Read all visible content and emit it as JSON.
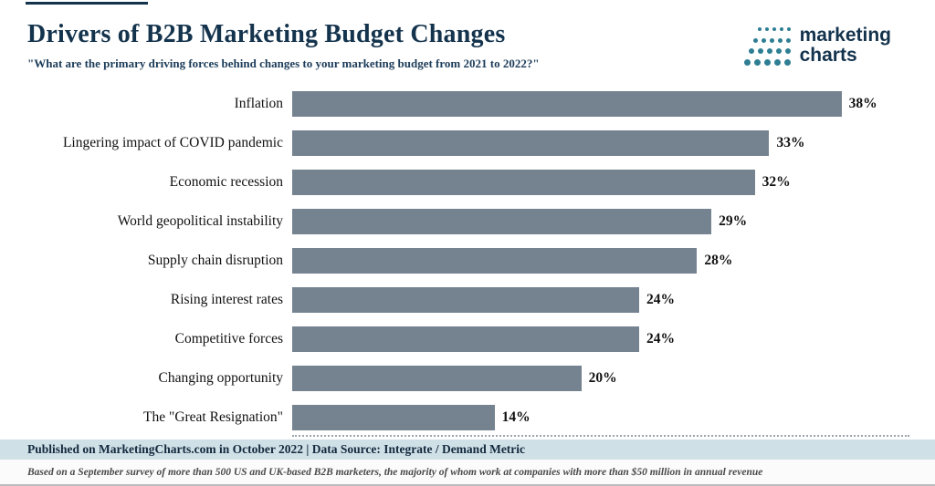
{
  "header": {
    "title": "Drivers of B2B Marketing Budget Changes",
    "subtitle": "\"What are the primary driving forces behind changes to your marketing budget from 2021 to 2022?\""
  },
  "logo": {
    "line1": "marketing",
    "line2": "charts",
    "dot_color": "#2e7e93",
    "text_color": "#14334d"
  },
  "chart_data": {
    "type": "bar",
    "orientation": "horizontal",
    "title": "Drivers of B2B Marketing Budget Changes",
    "categories": [
      "Inflation",
      "Lingering impact of COVID pandemic",
      "Economic recession",
      "World geopolitical instability",
      "Supply chain disruption",
      "Rising interest rates",
      "Competitive forces",
      "Changing opportunity",
      "The \"Great Resignation\""
    ],
    "values": [
      38,
      33,
      32,
      29,
      28,
      24,
      24,
      20,
      14
    ],
    "value_suffix": "%",
    "xlim": [
      0,
      40
    ],
    "bar_color": "#75828f",
    "grid": false,
    "legend": "none"
  },
  "footer": {
    "published": "Published on MarketingCharts.com in October 2022 | Data Source: Integrate / Demand Metric",
    "note": "Based on a September survey of more than 500 US and UK-based B2B marketers, the majority of whom work at companies with more than $50 million in annual revenue"
  },
  "colors": {
    "title_navy": "#14334d",
    "bar_slate": "#75828f",
    "footer_bg": "#cfe0e7",
    "accent_teal": "#2e7e93"
  }
}
